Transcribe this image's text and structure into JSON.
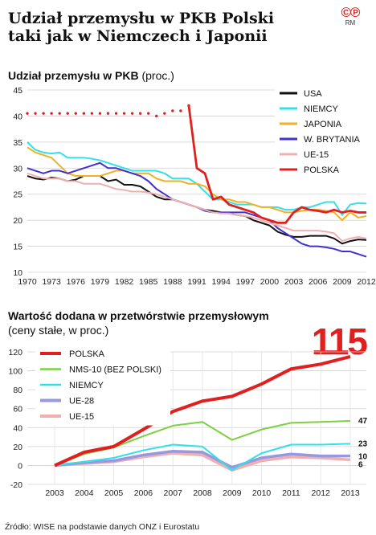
{
  "header": {
    "title_line1": "Udział przemysłu w PKB Polski",
    "title_line2": "taki jak w Niemczech i Japonii",
    "logo": "©℗",
    "logo_sub": "RM"
  },
  "highlight_value": "115",
  "source": "Źródło: WISE na podstawie danych ONZ i Eurostatu",
  "chart_data": [
    {
      "type": "line",
      "title": "Udział przemysłu w PKB",
      "subtitle": "(proc.)",
      "ylim": [
        10,
        45
      ],
      "yticks": [
        10,
        15,
        20,
        25,
        30,
        35,
        40,
        45
      ],
      "x": [
        1970,
        1971,
        1972,
        1973,
        1974,
        1975,
        1976,
        1977,
        1978,
        1979,
        1980,
        1981,
        1982,
        1983,
        1984,
        1985,
        1986,
        1987,
        1988,
        1989,
        1990,
        1991,
        1992,
        1993,
        1994,
        1995,
        1996,
        1997,
        1998,
        1999,
        2000,
        2001,
        2002,
        2003,
        2004,
        2005,
        2006,
        2007,
        2008,
        2009,
        2010,
        2011,
        2012
      ],
      "xticks": [
        1970,
        1973,
        1976,
        1979,
        1982,
        1985,
        1988,
        1991,
        1994,
        1997,
        2000,
        2003,
        2006,
        2009,
        2012
      ],
      "grid": true,
      "legend_position": "top-right",
      "series": [
        {
          "name": "USA",
          "color": "#111111",
          "values": [
            28.5,
            28.0,
            27.8,
            28.2,
            28.0,
            27.5,
            27.8,
            28.5,
            28.5,
            28.5,
            27.5,
            27.8,
            26.8,
            26.8,
            26.5,
            25.5,
            24.5,
            24.0,
            24.0,
            23.5,
            23.0,
            22.5,
            22.0,
            21.8,
            21.5,
            21.3,
            21.0,
            20.8,
            20.0,
            19.5,
            19.0,
            17.8,
            17.2,
            16.8,
            16.8,
            17.0,
            17.0,
            17.0,
            16.5,
            15.5,
            16.0,
            16.3,
            16.2
          ]
        },
        {
          "name": "NIEMCY",
          "color": "#33e0e8",
          "values": [
            35.0,
            33.5,
            33.0,
            32.8,
            33.0,
            32.0,
            32.0,
            32.0,
            31.8,
            31.5,
            31.0,
            30.5,
            30.0,
            29.5,
            29.5,
            29.5,
            29.5,
            29.0,
            28.0,
            28.0,
            28.0,
            27.0,
            25.5,
            24.0,
            24.0,
            23.5,
            23.0,
            23.0,
            23.0,
            22.5,
            22.5,
            22.5,
            22.0,
            22.0,
            22.5,
            22.5,
            23.0,
            23.5,
            23.5,
            21.0,
            23.0,
            23.3,
            23.2
          ]
        },
        {
          "name": "JAPONIA",
          "color": "#f0b020",
          "values": [
            34.0,
            33.0,
            32.5,
            32.0,
            30.5,
            29.0,
            28.5,
            28.5,
            28.5,
            28.5,
            29.0,
            29.5,
            29.5,
            29.0,
            29.0,
            29.0,
            28.0,
            27.5,
            27.5,
            27.5,
            27.0,
            27.0,
            26.5,
            25.0,
            24.0,
            24.0,
            23.5,
            23.5,
            23.0,
            22.5,
            22.5,
            22.0,
            21.5,
            21.5,
            21.8,
            22.0,
            22.0,
            21.8,
            21.5,
            20.0,
            21.5,
            20.5,
            20.8
          ]
        },
        {
          "name": "W. BRYTANIA",
          "color": "#4030d0",
          "values": [
            30.0,
            29.5,
            29.0,
            29.5,
            29.5,
            29.0,
            29.5,
            30.0,
            30.5,
            31.0,
            30.0,
            30.0,
            29.5,
            29.0,
            28.5,
            27.5,
            26.0,
            25.0,
            24.0,
            23.5,
            23.0,
            22.5,
            21.8,
            21.5,
            21.5,
            21.5,
            21.5,
            21.5,
            21.0,
            20.5,
            20.0,
            18.5,
            17.5,
            16.5,
            15.5,
            15.0,
            15.0,
            14.8,
            14.5,
            14.0,
            14.0,
            13.5,
            13.0
          ]
        },
        {
          "name": "UE-15",
          "color": "#f0b0b0",
          "values": [
            29.0,
            28.5,
            28.0,
            28.0,
            28.0,
            27.5,
            27.5,
            27.0,
            27.0,
            27.0,
            26.5,
            26.0,
            25.8,
            25.5,
            25.5,
            25.3,
            25.0,
            24.5,
            24.0,
            23.5,
            23.0,
            22.5,
            22.0,
            21.5,
            21.3,
            21.3,
            21.0,
            20.8,
            20.5,
            20.0,
            19.5,
            19.0,
            18.5,
            18.0,
            18.0,
            18.0,
            18.0,
            17.8,
            17.5,
            16.0,
            16.5,
            16.8,
            16.5
          ]
        },
        {
          "name": "POLSKA",
          "color": "#e02020",
          "dotted_until": 1990,
          "values": [
            40.5,
            40.5,
            40.5,
            40.5,
            40.5,
            40.5,
            40.5,
            40.5,
            40.5,
            40.5,
            40.5,
            40.5,
            40.5,
            40.5,
            40.5,
            40.5,
            40.0,
            40.5,
            41.0,
            41.0,
            42.0,
            30.0,
            29.0,
            24.0,
            24.5,
            23.0,
            22.5,
            22.0,
            21.5,
            20.5,
            20.0,
            19.5,
            19.5,
            21.5,
            22.5,
            22.0,
            21.8,
            21.5,
            22.0,
            21.5,
            21.8,
            21.5,
            21.5
          ]
        }
      ]
    },
    {
      "type": "line",
      "title": "Wartość dodana w przetwórstwie przemysłowym",
      "subtitle": "(ceny stałe, w proc.)",
      "ylim": [
        -20,
        120
      ],
      "yticks": [
        -20,
        0,
        20,
        40,
        60,
        80,
        100,
        120
      ],
      "x": [
        2003,
        2004,
        2005,
        2006,
        2007,
        2008,
        2009,
        2010,
        2011,
        2012,
        2013
      ],
      "grid": true,
      "legend_position": "top-left",
      "series": [
        {
          "name": "POLSKA",
          "color": "#e02020",
          "values": [
            0,
            14,
            20,
            38,
            57,
            68,
            73,
            86,
            102,
            107,
            115
          ]
        },
        {
          "name": "NMS-10 (BEZ POLSKI)",
          "color": "#7dd040",
          "values": [
            0,
            12,
            19,
            31,
            42,
            46,
            27,
            38,
            45,
            46,
            47
          ]
        },
        {
          "name": "NIEMCY",
          "color": "#33e0e8",
          "values": [
            0,
            4,
            8,
            16,
            22,
            20,
            -5,
            13,
            22,
            22,
            23
          ]
        },
        {
          "name": "UE-28",
          "color": "#9898e0",
          "values": [
            0,
            3,
            5,
            11,
            15,
            14,
            -2,
            8,
            12,
            10,
            10
          ]
        },
        {
          "name": "UE-15",
          "color": "#f0b0b0",
          "values": [
            0,
            2,
            4,
            9,
            13,
            11,
            -5,
            5,
            9,
            8,
            6
          ]
        }
      ],
      "end_labels": [
        "47",
        "23",
        "10",
        "6"
      ]
    }
  ]
}
